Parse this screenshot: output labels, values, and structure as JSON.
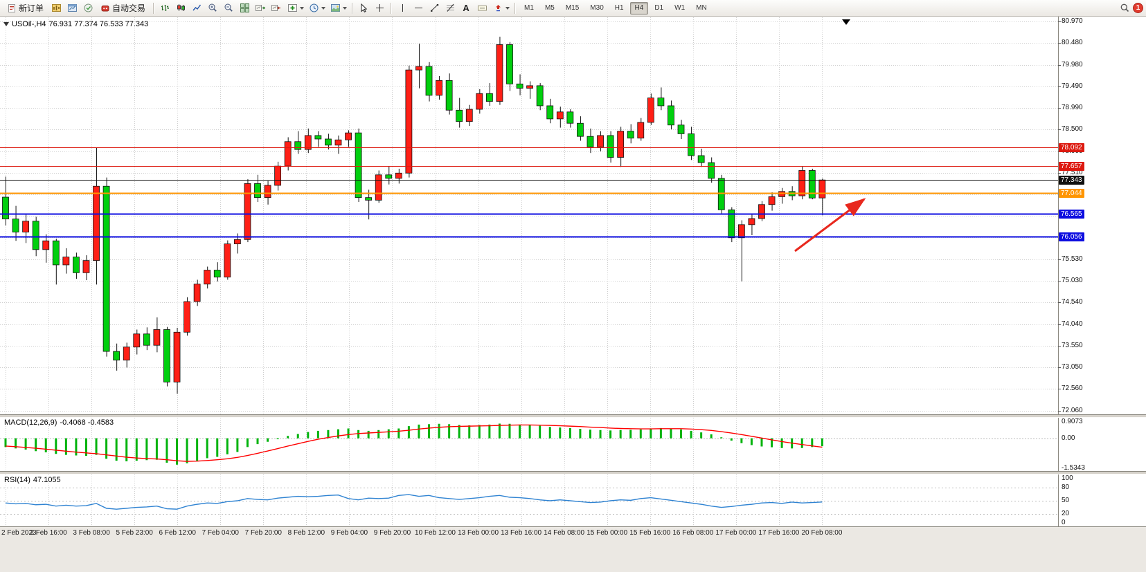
{
  "toolbar": {
    "new_order_label": "新订单",
    "autotrading_label": "自动交易",
    "text_tool_label": "A",
    "timeframes": [
      "M1",
      "M5",
      "M15",
      "M30",
      "H1",
      "H4",
      "D1",
      "W1",
      "MN"
    ],
    "active_timeframe": "H4",
    "notification_badge": "1"
  },
  "chart": {
    "symbol_label": "USOil-,H4",
    "ohlc_label": "76.931 77.374 76.533 77.343",
    "macd_label": "MACD(12,26,9)",
    "macd_values": "-0.4068 -0.4583",
    "rsi_label": "RSI(14)",
    "rsi_value": "47.1055"
  },
  "chart_data": [
    {
      "type": "candlestick",
      "symbol": "USOil-",
      "timeframe": "H4",
      "current_ohlc": {
        "open": 76.931,
        "high": 77.374,
        "low": 76.533,
        "close": 77.343
      },
      "up_color": "#ff1f16",
      "down_color": "#00cf0e",
      "y_axis": {
        "min": 72.06,
        "max": 80.97,
        "ticks": [
          "80.970",
          "80.480",
          "79.980",
          "79.490",
          "78.990",
          "78.500",
          "78.000",
          "77.510",
          "75.530",
          "75.030",
          "74.540",
          "74.040",
          "73.550",
          "73.050",
          "72.560",
          "72.060"
        ],
        "grid_extra": [
          77.02,
          76.53,
          76.04
        ]
      },
      "x_ticks": [
        "2 Feb 2023",
        "2 Feb 16:00",
        "3 Feb 08:00",
        "5 Feb 23:00",
        "6 Feb 12:00",
        "7 Feb 04:00",
        "7 Feb 20:00",
        "8 Feb 12:00",
        "9 Feb 04:00",
        "9 Feb 20:00",
        "10 Feb 12:00",
        "13 Feb 00:00",
        "13 Feb 16:00",
        "14 Feb 08:00",
        "15 Feb 00:00",
        "15 Feb 16:00",
        "16 Feb 08:00",
        "17 Feb 00:00",
        "17 Feb 16:00",
        "20 Feb 08:00"
      ],
      "levels": [
        {
          "price": 78.092,
          "badge": "78.092",
          "color": "#dd1a10",
          "width": 1
        },
        {
          "price": 77.657,
          "badge": "77.657",
          "color": "#dd1a10",
          "width": 1
        },
        {
          "price": 77.343,
          "badge": "77.343",
          "color": "#111111",
          "width": 1
        },
        {
          "price": 77.044,
          "badge": "77.044",
          "color": "#ff9500",
          "width": 2
        },
        {
          "price": 76.565,
          "badge": "76.565",
          "color": "#0d0de0",
          "width": 2
        },
        {
          "price": 76.056,
          "badge": "76.056",
          "color": "#0d0de0",
          "width": 2
        }
      ],
      "annotation_arrow": {
        "from": [
          1148,
          363
        ],
        "to": [
          1248,
          288
        ],
        "color": "#e8281e"
      },
      "candles": [
        [
          76.95,
          77.42,
          76.3,
          76.45
        ],
        [
          76.45,
          76.75,
          75.95,
          76.15
        ],
        [
          76.15,
          76.55,
          75.9,
          76.4
        ],
        [
          76.4,
          76.5,
          75.6,
          75.75
        ],
        [
          75.75,
          76.1,
          75.45,
          75.95
        ],
        [
          75.95,
          76.0,
          74.95,
          75.4
        ],
        [
          75.4,
          75.78,
          75.2,
          75.58
        ],
        [
          75.58,
          75.68,
          75.08,
          75.22
        ],
        [
          75.22,
          75.62,
          75.05,
          75.5
        ],
        [
          75.5,
          78.09,
          74.95,
          77.2
        ],
        [
          77.2,
          77.4,
          73.3,
          73.42
        ],
        [
          73.42,
          73.6,
          72.98,
          73.22
        ],
        [
          73.22,
          73.62,
          73.05,
          73.52
        ],
        [
          73.52,
          73.92,
          73.35,
          73.82
        ],
        [
          73.82,
          73.97,
          73.45,
          73.56
        ],
        [
          73.56,
          74.2,
          73.4,
          73.92
        ],
        [
          73.92,
          73.98,
          72.62,
          72.72
        ],
        [
          72.72,
          73.96,
          72.45,
          73.86
        ],
        [
          73.86,
          74.66,
          73.78,
          74.56
        ],
        [
          74.56,
          75.06,
          74.46,
          74.96
        ],
        [
          74.96,
          75.36,
          74.86,
          75.28
        ],
        [
          75.28,
          75.46,
          75.02,
          75.12
        ],
        [
          75.12,
          75.96,
          75.06,
          75.88
        ],
        [
          75.88,
          76.12,
          75.66,
          75.98
        ],
        [
          75.98,
          77.36,
          75.92,
          77.26
        ],
        [
          77.26,
          77.46,
          76.84,
          76.94
        ],
        [
          76.94,
          77.32,
          76.78,
          77.22
        ],
        [
          77.22,
          77.76,
          77.1,
          77.66
        ],
        [
          77.66,
          78.32,
          77.56,
          78.22
        ],
        [
          78.22,
          78.46,
          77.94,
          78.04
        ],
        [
          78.04,
          78.52,
          77.96,
          78.36
        ],
        [
          78.36,
          78.46,
          78.1,
          78.28
        ],
        [
          78.28,
          78.4,
          78.04,
          78.14
        ],
        [
          78.14,
          78.36,
          77.94,
          78.26
        ],
        [
          78.26,
          78.48,
          78.1,
          78.42
        ],
        [
          78.42,
          78.52,
          76.84,
          76.94
        ],
        [
          76.94,
          77.12,
          76.44,
          76.88
        ],
        [
          76.88,
          77.56,
          76.82,
          77.46
        ],
        [
          77.46,
          77.66,
          77.24,
          77.38
        ],
        [
          77.38,
          77.6,
          77.26,
          77.5
        ],
        [
          77.5,
          79.96,
          77.4,
          79.86
        ],
        [
          79.86,
          80.46,
          79.44,
          79.94
        ],
        [
          79.94,
          80.04,
          79.14,
          79.28
        ],
        [
          79.28,
          79.72,
          79.18,
          79.62
        ],
        [
          79.62,
          79.78,
          78.84,
          78.94
        ],
        [
          78.94,
          79.22,
          78.54,
          78.68
        ],
        [
          78.68,
          79.06,
          78.58,
          78.96
        ],
        [
          78.96,
          79.42,
          78.86,
          79.32
        ],
        [
          79.32,
          79.56,
          79.04,
          79.14
        ],
        [
          79.14,
          80.62,
          79.06,
          80.44
        ],
        [
          80.44,
          80.5,
          79.38,
          79.54
        ],
        [
          79.54,
          79.76,
          79.28,
          79.44
        ],
        [
          79.44,
          79.6,
          79.2,
          79.5
        ],
        [
          79.5,
          79.56,
          78.94,
          79.04
        ],
        [
          79.04,
          79.2,
          78.64,
          78.74
        ],
        [
          78.74,
          79.02,
          78.54,
          78.9
        ],
        [
          78.9,
          78.96,
          78.54,
          78.64
        ],
        [
          78.64,
          78.8,
          78.24,
          78.34
        ],
        [
          78.34,
          78.52,
          77.96,
          78.1
        ],
        [
          78.1,
          78.46,
          78.0,
          78.36
        ],
        [
          78.36,
          78.46,
          77.74,
          77.86
        ],
        [
          77.86,
          78.56,
          77.64,
          78.46
        ],
        [
          78.46,
          78.62,
          78.18,
          78.3
        ],
        [
          78.3,
          78.76,
          78.24,
          78.66
        ],
        [
          78.66,
          79.32,
          78.6,
          79.22
        ],
        [
          79.22,
          79.46,
          78.94,
          79.04
        ],
        [
          79.04,
          79.16,
          78.5,
          78.6
        ],
        [
          78.6,
          78.72,
          78.28,
          78.4
        ],
        [
          78.4,
          78.56,
          77.8,
          77.9
        ],
        [
          77.9,
          78.06,
          77.64,
          77.74
        ],
        [
          77.74,
          77.86,
          77.28,
          77.38
        ],
        [
          77.38,
          77.46,
          76.56,
          76.66
        ],
        [
          76.66,
          76.72,
          75.92,
          76.02
        ],
        [
          76.02,
          76.42,
          75.02,
          76.32
        ],
        [
          76.32,
          76.56,
          76.08,
          76.46
        ],
        [
          76.46,
          76.86,
          76.4,
          76.78
        ],
        [
          76.78,
          77.06,
          76.64,
          76.96
        ],
        [
          76.96,
          77.16,
          76.8,
          77.08
        ],
        [
          77.08,
          77.2,
          76.88,
          76.98
        ],
        [
          76.98,
          77.66,
          76.9,
          77.56
        ],
        [
          77.56,
          77.6,
          76.9,
          76.93
        ],
        [
          76.931,
          77.374,
          76.533,
          77.343
        ]
      ]
    },
    {
      "type": "bar",
      "name": "MACD(12,26,9)",
      "current_values": [
        -0.4068,
        -0.4583
      ],
      "max": 0.9073,
      "min": -1.5343,
      "axis_labels": [
        "0.9073",
        "0.00",
        "-1.5343"
      ],
      "histogram_color": "#00b30c",
      "signal_color": "#ff0000",
      "macd": [
        -0.45,
        -0.52,
        -0.58,
        -0.66,
        -0.72,
        -0.8,
        -0.85,
        -0.88,
        -0.9,
        -0.85,
        -1.05,
        -1.15,
        -1.18,
        -1.15,
        -1.12,
        -1.1,
        -1.25,
        -1.35,
        -1.28,
        -1.15,
        -1.02,
        -0.95,
        -0.82,
        -0.7,
        -0.45,
        -0.3,
        -0.18,
        -0.05,
        0.12,
        0.22,
        0.32,
        0.38,
        0.42,
        0.46,
        0.5,
        0.42,
        0.38,
        0.42,
        0.46,
        0.5,
        0.62,
        0.7,
        0.72,
        0.74,
        0.72,
        0.68,
        0.66,
        0.68,
        0.7,
        0.75,
        0.74,
        0.7,
        0.68,
        0.64,
        0.58,
        0.55,
        0.52,
        0.48,
        0.44,
        0.42,
        0.4,
        0.42,
        0.43,
        0.45,
        0.5,
        0.52,
        0.5,
        0.45,
        0.38,
        0.3,
        0.2,
        0.05,
        -0.12,
        -0.25,
        -0.35,
        -0.42,
        -0.46,
        -0.5,
        -0.52,
        -0.5,
        -0.45,
        -0.4068
      ],
      "signal": [
        -0.4,
        -0.43,
        -0.47,
        -0.51,
        -0.56,
        -0.61,
        -0.66,
        -0.71,
        -0.75,
        -0.79,
        -0.85,
        -0.91,
        -0.97,
        -1.01,
        -1.04,
        -1.06,
        -1.1,
        -1.15,
        -1.18,
        -1.17,
        -1.14,
        -1.1,
        -1.05,
        -0.98,
        -0.88,
        -0.77,
        -0.65,
        -0.53,
        -0.4,
        -0.28,
        -0.16,
        -0.05,
        0.04,
        0.12,
        0.19,
        0.24,
        0.27,
        0.3,
        0.33,
        0.36,
        0.41,
        0.47,
        0.52,
        0.56,
        0.59,
        0.61,
        0.62,
        0.63,
        0.64,
        0.66,
        0.67,
        0.68,
        0.68,
        0.67,
        0.66,
        0.64,
        0.62,
        0.6,
        0.57,
        0.55,
        0.52,
        0.5,
        0.49,
        0.48,
        0.48,
        0.49,
        0.49,
        0.49,
        0.47,
        0.44,
        0.4,
        0.34,
        0.27,
        0.19,
        0.1,
        0.01,
        -0.08,
        -0.17,
        -0.25,
        -0.32,
        -0.39,
        -0.4583
      ]
    },
    {
      "type": "line",
      "name": "RSI(14)",
      "value": 47.1055,
      "axis_labels": [
        "100",
        "80",
        "50",
        "20",
        "0"
      ],
      "level_lines": [
        80,
        50,
        20
      ],
      "line_color": "#2f83d2",
      "rsi": [
        45,
        43,
        44,
        41,
        42,
        38,
        40,
        38,
        39,
        44,
        33,
        31,
        33,
        35,
        36,
        38,
        32,
        31,
        38,
        42,
        45,
        44,
        48,
        50,
        55,
        53,
        52,
        56,
        58,
        60,
        59,
        60,
        62,
        63,
        55,
        52,
        56,
        55,
        56,
        62,
        64,
        60,
        62,
        57,
        55,
        53,
        55,
        57,
        60,
        62,
        58,
        57,
        55,
        52,
        50,
        52,
        50,
        48,
        46,
        47,
        50,
        52,
        51,
        55,
        57,
        54,
        51,
        48,
        45,
        42,
        38,
        35,
        37,
        40,
        42,
        45,
        46,
        44,
        47,
        45,
        46,
        47.1
      ]
    }
  ]
}
